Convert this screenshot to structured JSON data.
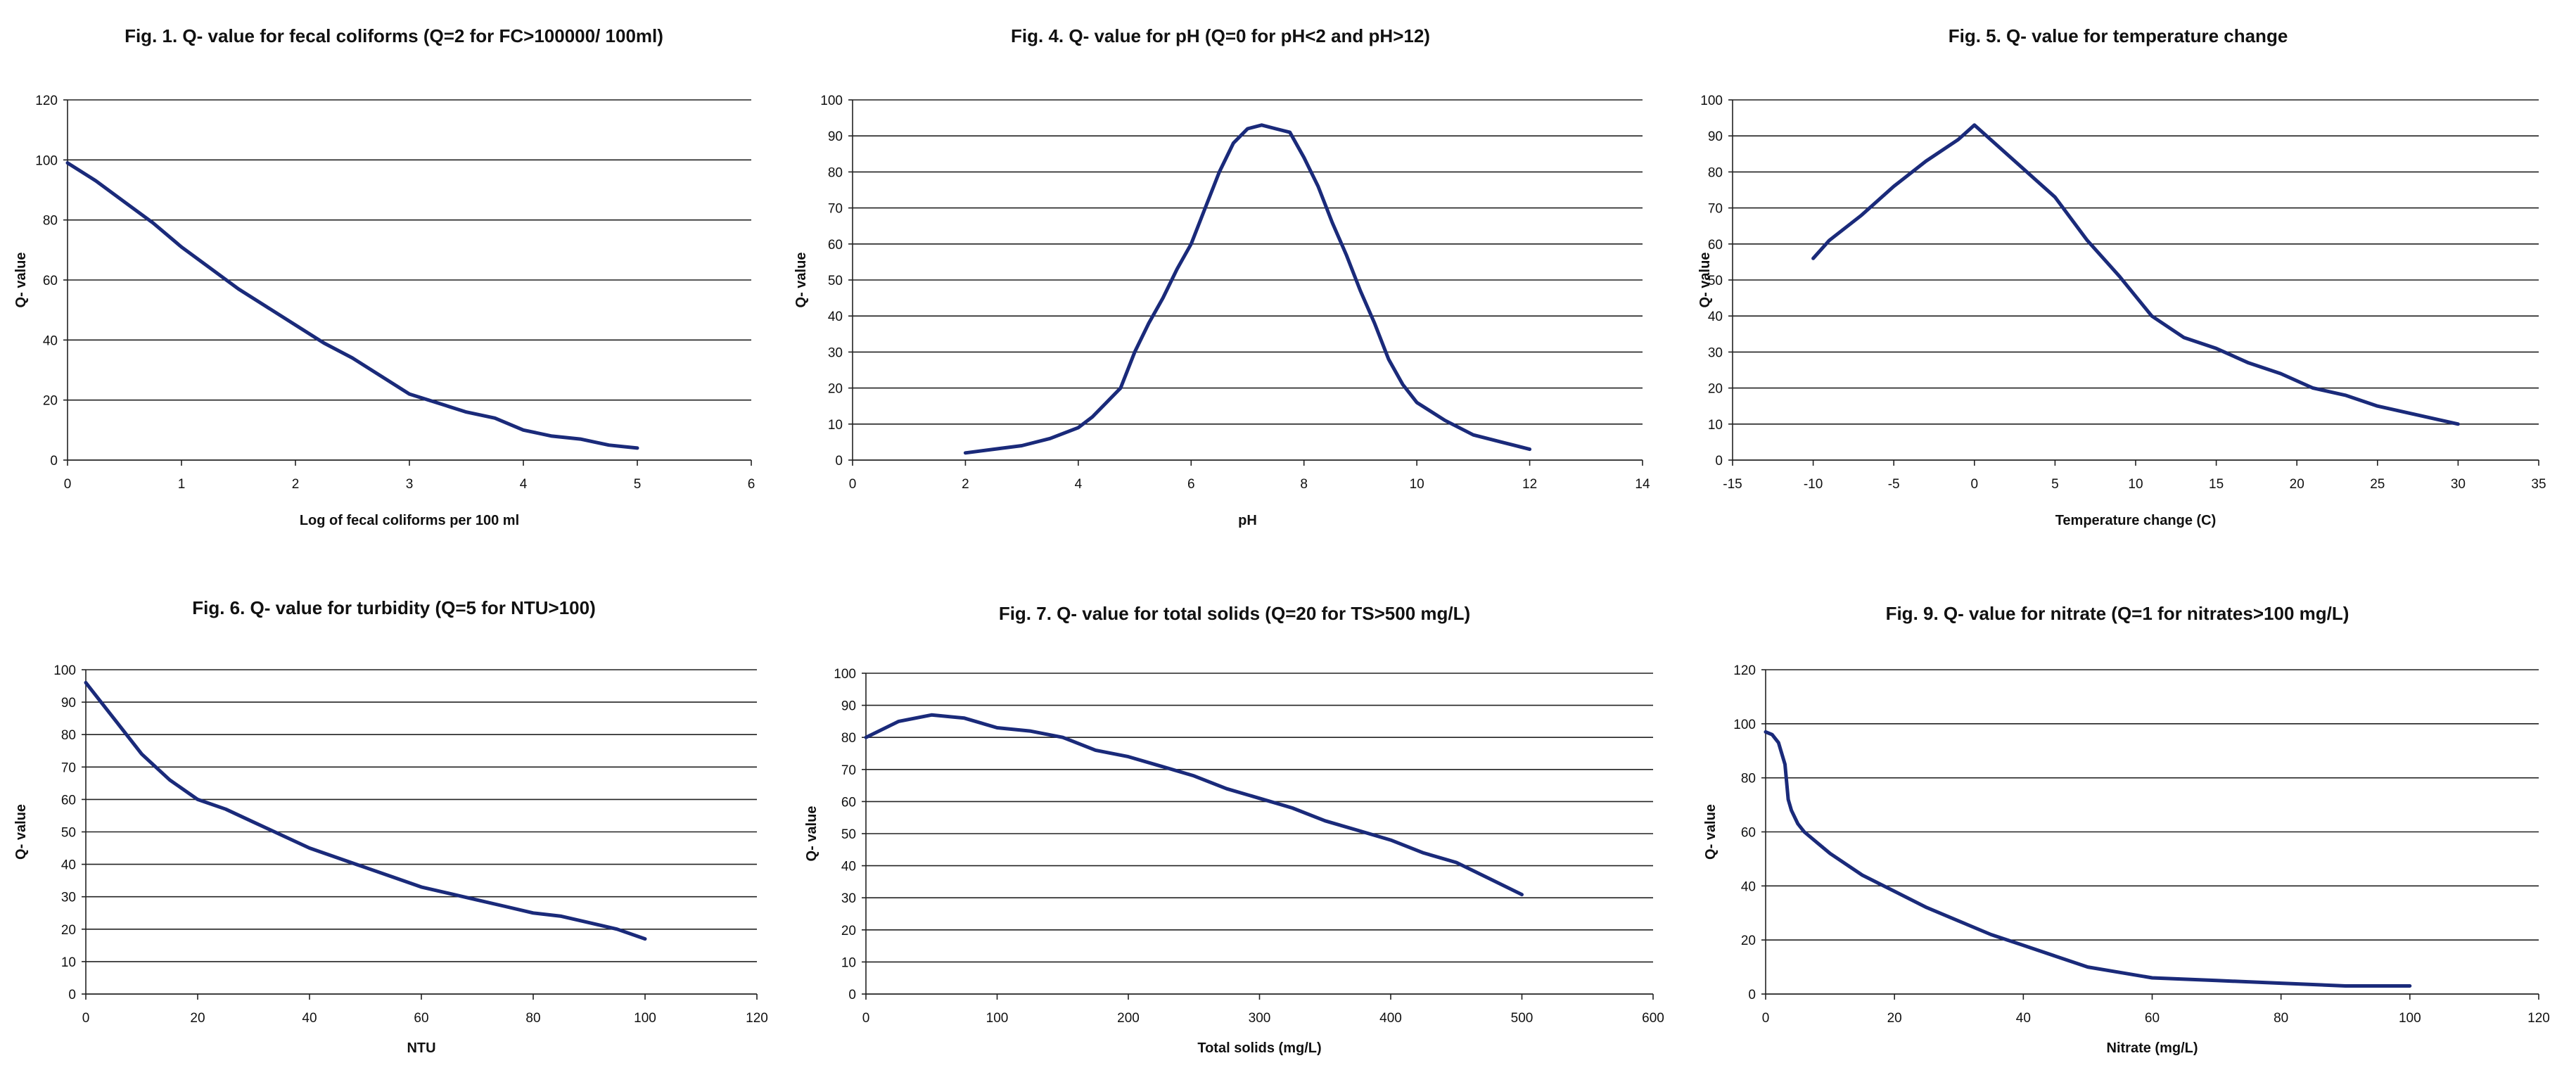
{
  "colors": {
    "series": "#1a2a7a",
    "grid": "#222222",
    "text": "#111111"
  },
  "chart_data": [
    {
      "type": "line",
      "title": "Fig. 1. Q- value for fecal coliforms (Q=2 for FC>100000/ 100ml)",
      "xlabel": "Log of  fecal coliforms per 100 ml",
      "ylabel": "Q- value",
      "xlim": [
        0,
        6
      ],
      "ylim": [
        0,
        120
      ],
      "xticks": [
        0,
        1,
        2,
        3,
        4,
        5,
        6
      ],
      "yticks": [
        0,
        20,
        40,
        60,
        80,
        100,
        120
      ],
      "grid": "horizontal",
      "series": [
        {
          "name": "Q-value",
          "x": [
            0,
            0.25,
            0.5,
            0.75,
            1.0,
            1.25,
            1.5,
            1.75,
            2.0,
            2.25,
            2.5,
            2.75,
            3.0,
            3.25,
            3.5,
            3.75,
            4.0,
            4.25,
            4.5,
            4.75,
            5.0
          ],
          "y": [
            99,
            93,
            86,
            79,
            71,
            64,
            57,
            51,
            45,
            39,
            34,
            28,
            22,
            19,
            16,
            14,
            10,
            8,
            7,
            5,
            4
          ]
        }
      ]
    },
    {
      "type": "line",
      "title": "Fig. 4. Q- value for pH (Q=0 for pH<2 and pH>12)",
      "xlabel": "pH",
      "ylabel": "Q- value",
      "xlim": [
        0,
        14
      ],
      "ylim": [
        0,
        100
      ],
      "xticks": [
        0,
        2,
        4,
        6,
        8,
        10,
        12,
        14
      ],
      "yticks": [
        0,
        10,
        20,
        30,
        40,
        50,
        60,
        70,
        80,
        90,
        100
      ],
      "grid": "horizontal",
      "series": [
        {
          "name": "Q-value",
          "x": [
            2,
            2.5,
            3,
            3.5,
            4,
            4.25,
            4.5,
            4.75,
            5,
            5.25,
            5.5,
            5.75,
            6,
            6.25,
            6.5,
            6.75,
            7,
            7.25,
            7.5,
            7.75,
            8,
            8.25,
            8.5,
            8.75,
            9,
            9.25,
            9.5,
            9.75,
            10,
            10.5,
            11,
            11.5,
            12
          ],
          "y": [
            2,
            3,
            4,
            6,
            9,
            12,
            16,
            20,
            30,
            38,
            45,
            53,
            60,
            70,
            80,
            88,
            92,
            93,
            92,
            91,
            84,
            76,
            66,
            57,
            47,
            38,
            28,
            21,
            16,
            11,
            7,
            5,
            3
          ]
        }
      ]
    },
    {
      "type": "line",
      "title": "Fig. 5. Q- value for temperature change",
      "xlabel": "Temperature change (C)",
      "ylabel": "Q- value",
      "xlim": [
        -15,
        35
      ],
      "ylim": [
        0,
        100
      ],
      "xticks": [
        -15,
        -10,
        -5,
        0,
        5,
        10,
        15,
        20,
        25,
        30,
        35
      ],
      "yticks": [
        0,
        10,
        20,
        30,
        40,
        50,
        60,
        70,
        80,
        90,
        100
      ],
      "grid": "horizontal",
      "series": [
        {
          "name": "Q-value",
          "x": [
            -10,
            -9,
            -7,
            -5,
            -3,
            -1,
            0,
            1,
            3,
            5,
            7,
            9,
            11,
            13,
            15,
            17,
            19,
            21,
            23,
            25,
            27,
            30
          ],
          "y": [
            56,
            61,
            68,
            76,
            83,
            89,
            93,
            89,
            81,
            73,
            61,
            51,
            40,
            34,
            31,
            27,
            24,
            20,
            18,
            15,
            13,
            10
          ]
        }
      ]
    },
    {
      "type": "line",
      "title": "Fig. 6. Q- value for turbidity (Q=5 for NTU>100)",
      "xlabel": "NTU",
      "ylabel": "Q- value",
      "xlim": [
        0,
        120
      ],
      "ylim": [
        0,
        100
      ],
      "xticks": [
        0,
        20,
        40,
        60,
        80,
        100,
        120
      ],
      "yticks": [
        0,
        10,
        20,
        30,
        40,
        50,
        60,
        70,
        80,
        90,
        100
      ],
      "grid": "horizontal",
      "series": [
        {
          "name": "Q-value",
          "x": [
            0,
            5,
            10,
            15,
            20,
            25,
            30,
            35,
            40,
            45,
            50,
            55,
            60,
            65,
            70,
            75,
            80,
            85,
            90,
            95,
            100
          ],
          "y": [
            96,
            85,
            74,
            66,
            60,
            57,
            53,
            49,
            45,
            42,
            39,
            36,
            33,
            31,
            29,
            27,
            25,
            24,
            22,
            20,
            17
          ]
        }
      ]
    },
    {
      "type": "line",
      "title": "Fig. 7. Q- value for total solids (Q=20 for TS>500 mg/L)",
      "xlabel": "Total solids (mg/L)",
      "ylabel": "Q- value",
      "xlim": [
        0,
        600
      ],
      "ylim": [
        0,
        100
      ],
      "xticks": [
        0,
        100,
        200,
        300,
        400,
        500,
        600
      ],
      "yticks": [
        0,
        10,
        20,
        30,
        40,
        50,
        60,
        70,
        80,
        90,
        100
      ],
      "grid": "horizontal",
      "series": [
        {
          "name": "Q-value",
          "x": [
            0,
            25,
            50,
            75,
            100,
            125,
            150,
            175,
            200,
            225,
            250,
            275,
            300,
            325,
            350,
            375,
            400,
            425,
            450,
            475,
            500
          ],
          "y": [
            80,
            85,
            87,
            86,
            83,
            82,
            80,
            76,
            74,
            71,
            68,
            64,
            61,
            58,
            54,
            51,
            48,
            44,
            41,
            36,
            31
          ]
        }
      ]
    },
    {
      "type": "line",
      "title": "Fig. 9. Q- value for nitrate (Q=1 for nitrates>100 mg/L)",
      "xlabel": "Nitrate (mg/L)",
      "ylabel": "Q- value",
      "xlim": [
        0,
        120
      ],
      "ylim": [
        0,
        120
      ],
      "xticks": [
        0,
        20,
        40,
        60,
        80,
        100,
        120
      ],
      "yticks": [
        0,
        20,
        40,
        60,
        80,
        100,
        120
      ],
      "grid": "horizontal",
      "series": [
        {
          "name": "Q-value",
          "x": [
            0,
            1,
            2,
            3,
            3.5,
            4,
            5,
            6,
            8,
            10,
            15,
            20,
            25,
            30,
            35,
            40,
            45,
            50,
            55,
            60,
            70,
            80,
            90,
            100
          ],
          "y": [
            97,
            96,
            93,
            85,
            72,
            68,
            63,
            60,
            56,
            52,
            44,
            38,
            32,
            27,
            22,
            18,
            14,
            10,
            8,
            6,
            5,
            4,
            3,
            3
          ]
        }
      ]
    }
  ]
}
